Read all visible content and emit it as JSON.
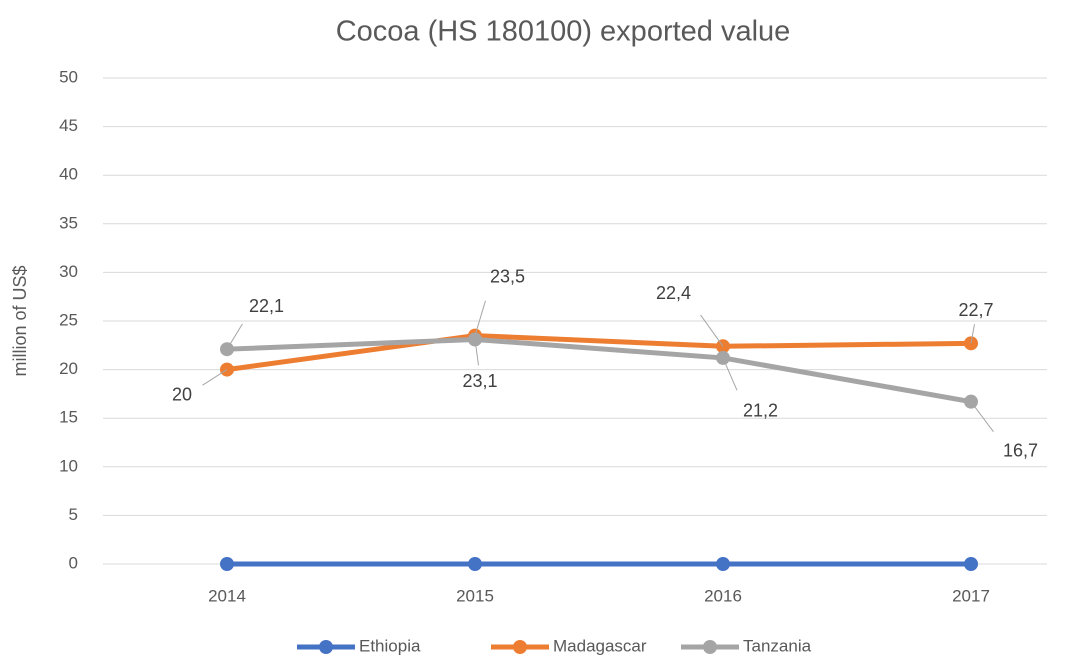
{
  "chart_data": {
    "type": "line",
    "title": "Cocoa (HS 180100) exported value",
    "y_label": "million of US$",
    "categories": [
      "2014",
      "2015",
      "2016",
      "2017"
    ],
    "series": [
      {
        "name": "Ethiopia",
        "color": "#4472c4",
        "values": [
          0,
          0,
          0,
          0
        ]
      },
      {
        "name": "Madagascar",
        "color": "#ed7d31",
        "values": [
          20,
          23.5,
          22.4,
          22.7
        ],
        "value_labels": [
          "20",
          "23,5",
          "22,4",
          "22,7"
        ]
      },
      {
        "name": "Tanzania",
        "color": "#a5a5a5",
        "values": [
          22.1,
          23.1,
          21.2,
          16.7
        ],
        "value_labels": [
          "22,1",
          "23,1",
          "21,2",
          "16,7"
        ]
      }
    ],
    "ylim": [
      0,
      50
    ],
    "yticks": [
      0,
      5,
      10,
      15,
      20,
      25,
      30,
      35,
      40,
      45,
      50
    ],
    "grid": true,
    "legend": "bottom"
  }
}
